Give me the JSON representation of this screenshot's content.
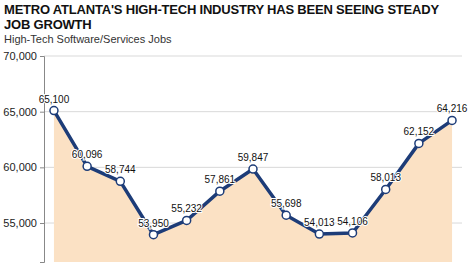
{
  "chart_data": {
    "type": "line",
    "title": "METRO ATLANTA'S HIGH-TECH INDUSTRY HAS BEEN SEEING STEADY JOB GROWTH",
    "subtitle": "High-Tech Software/Services Jobs",
    "categories": [
      null,
      null,
      null,
      null,
      null,
      null,
      null,
      null,
      null,
      null,
      null,
      null,
      null
    ],
    "values": [
      65100,
      60096,
      58744,
      53950,
      55232,
      57861,
      59847,
      55698,
      54013,
      54106,
      58013,
      62152,
      64216
    ],
    "value_labels": [
      "65,100",
      "60,096",
      "58,744",
      "53,950",
      "55,232",
      "57,861",
      "59,847",
      "55,698",
      "54,013",
      "54,106",
      "58,013",
      "62,152",
      "64,216"
    ],
    "color": "#1d3c78",
    "marker": "circle",
    "ylim": [
      51500,
      70000
    ],
    "yticks": [
      {
        "value": 55000,
        "label": "55,000"
      },
      {
        "value": 60000,
        "label": "60,000"
      },
      {
        "value": 65000,
        "label": "65,000"
      },
      {
        "value": 70000,
        "label": "70,000"
      }
    ],
    "grid": true,
    "data_labels": true,
    "tick_labels": "y"
  }
}
